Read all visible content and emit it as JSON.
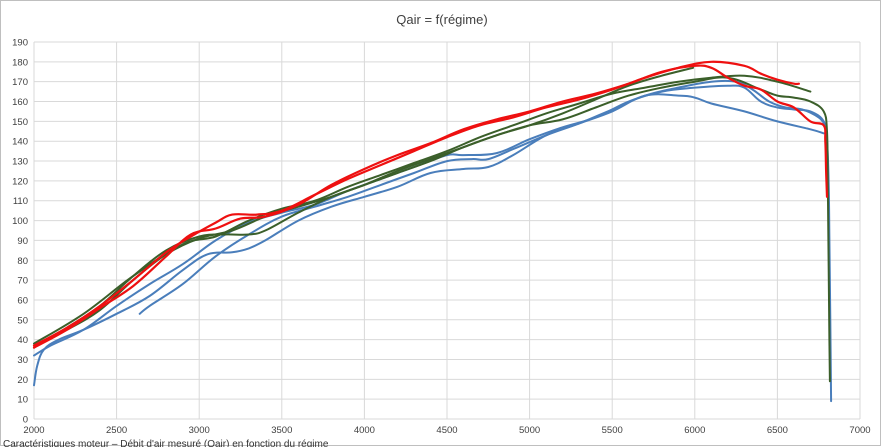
{
  "chart_data": {
    "type": "line",
    "title": "Qair = f(régime)",
    "xlabel": "",
    "ylabel": "",
    "xlim": [
      2000,
      7000
    ],
    "ylim": [
      0,
      190
    ],
    "x_ticks": [
      "2000",
      "2500",
      "3000",
      "3500",
      "4000",
      "4500",
      "5000",
      "5500",
      "6000",
      "6500",
      "7000"
    ],
    "y_ticks": [
      "0",
      "10",
      "20",
      "30",
      "40",
      "50",
      "60",
      "70",
      "80",
      "90",
      "100",
      "110",
      "120",
      "130",
      "140",
      "150",
      "160",
      "170",
      "180",
      "190"
    ],
    "grid": true,
    "legend": "none",
    "colors": {
      "blue": "#4a7ebb",
      "green": "#3b5f2a",
      "red": "#ee1010",
      "grid": "#d9d9d9",
      "text": "#404040"
    },
    "series": [
      {
        "color": "blue",
        "points": [
          [
            2000,
            17
          ],
          [
            2020,
            27
          ],
          [
            2060,
            35
          ],
          [
            2150,
            40
          ],
          [
            2300,
            45
          ],
          [
            2500,
            53
          ],
          [
            2700,
            62
          ],
          [
            2900,
            75
          ],
          [
            3050,
            83
          ],
          [
            3200,
            84
          ],
          [
            3300,
            86
          ],
          [
            3400,
            90
          ],
          [
            3600,
            100
          ],
          [
            3800,
            107
          ],
          [
            4000,
            112
          ],
          [
            4200,
            117
          ],
          [
            4400,
            124
          ],
          [
            4600,
            126
          ],
          [
            4750,
            127
          ],
          [
            4900,
            133
          ],
          [
            5100,
            143
          ],
          [
            5300,
            149
          ],
          [
            5500,
            155
          ],
          [
            5700,
            163
          ],
          [
            5900,
            163
          ],
          [
            6000,
            162
          ],
          [
            6100,
            159
          ],
          [
            6300,
            155
          ],
          [
            6500,
            150
          ],
          [
            6700,
            146
          ],
          [
            6780,
            144
          ]
        ]
      },
      {
        "color": "blue",
        "points": [
          [
            2000,
            32
          ],
          [
            2100,
            37
          ],
          [
            2300,
            45
          ],
          [
            2500,
            57
          ],
          [
            2700,
            68
          ],
          [
            2900,
            78
          ],
          [
            3100,
            90
          ],
          [
            3300,
            99
          ],
          [
            3500,
            104
          ],
          [
            3700,
            108
          ],
          [
            3900,
            115
          ],
          [
            4100,
            121
          ],
          [
            4300,
            127
          ],
          [
            4500,
            133
          ],
          [
            4600,
            133
          ],
          [
            4800,
            134
          ],
          [
            5000,
            141
          ],
          [
            5200,
            147
          ],
          [
            5400,
            152
          ],
          [
            5600,
            160
          ],
          [
            5800,
            165
          ],
          [
            6000,
            167
          ],
          [
            6200,
            168
          ],
          [
            6300,
            167
          ],
          [
            6400,
            160
          ],
          [
            6500,
            157
          ],
          [
            6600,
            156
          ],
          [
            6700,
            155
          ],
          [
            6780,
            150
          ],
          [
            6800,
            140
          ],
          [
            6810,
            120
          ],
          [
            6815,
            90
          ],
          [
            6820,
            50
          ],
          [
            6825,
            9
          ]
        ]
      },
      {
        "color": "blue",
        "points": [
          [
            2640,
            53
          ],
          [
            2700,
            57
          ],
          [
            2900,
            68
          ],
          [
            3100,
            82
          ],
          [
            3300,
            93
          ],
          [
            3500,
            102
          ],
          [
            3700,
            107
          ],
          [
            3900,
            112
          ],
          [
            4100,
            118
          ],
          [
            4300,
            124
          ],
          [
            4500,
            130
          ],
          [
            4650,
            131
          ],
          [
            4750,
            131
          ],
          [
            4900,
            136
          ],
          [
            5100,
            143
          ],
          [
            5300,
            149
          ],
          [
            5500,
            156
          ],
          [
            5700,
            163
          ],
          [
            5900,
            167
          ],
          [
            6100,
            170
          ],
          [
            6250,
            170
          ],
          [
            6350,
            166
          ],
          [
            6450,
            160
          ],
          [
            6550,
            157
          ],
          [
            6650,
            156
          ],
          [
            6750,
            152
          ],
          [
            6790,
            148
          ]
        ]
      },
      {
        "color": "green",
        "points": [
          [
            2000,
            37
          ],
          [
            2200,
            45
          ],
          [
            2400,
            55
          ],
          [
            2600,
            70
          ],
          [
            2800,
            83
          ],
          [
            3000,
            91
          ],
          [
            3200,
            95
          ],
          [
            3400,
            102
          ],
          [
            3600,
            107
          ],
          [
            3800,
            112
          ],
          [
            4000,
            118
          ],
          [
            4200,
            124
          ],
          [
            4400,
            130
          ],
          [
            4600,
            137
          ],
          [
            4800,
            143
          ],
          [
            5000,
            148
          ],
          [
            5200,
            154
          ],
          [
            5400,
            161
          ],
          [
            5600,
            168
          ],
          [
            5800,
            173
          ],
          [
            5990,
            177
          ]
        ]
      },
      {
        "color": "green",
        "points": [
          [
            2000,
            36
          ],
          [
            2200,
            46
          ],
          [
            2400,
            57
          ],
          [
            2600,
            72
          ],
          [
            2800,
            85
          ],
          [
            3000,
            92
          ],
          [
            3150,
            93
          ],
          [
            3300,
            93
          ],
          [
            3400,
            95
          ],
          [
            3600,
            104
          ],
          [
            3800,
            112
          ],
          [
            4000,
            118
          ],
          [
            4200,
            125
          ],
          [
            4400,
            131
          ],
          [
            4600,
            137
          ],
          [
            4800,
            143
          ],
          [
            5000,
            148
          ],
          [
            5200,
            151
          ],
          [
            5400,
            157
          ],
          [
            5600,
            163
          ],
          [
            5800,
            167
          ],
          [
            6000,
            170
          ],
          [
            6200,
            172
          ],
          [
            6400,
            166
          ],
          [
            6500,
            163
          ],
          [
            6600,
            162
          ],
          [
            6700,
            160
          ],
          [
            6780,
            155
          ],
          [
            6800,
            145
          ],
          [
            6805,
            120
          ],
          [
            6810,
            80
          ],
          [
            6815,
            40
          ],
          [
            6818,
            19
          ]
        ]
      },
      {
        "color": "green",
        "points": [
          [
            2000,
            38
          ],
          [
            2300,
            53
          ],
          [
            2600,
            72
          ],
          [
            2900,
            88
          ],
          [
            3100,
            92
          ],
          [
            3300,
            100
          ],
          [
            3500,
            106
          ],
          [
            3700,
            110
          ],
          [
            3900,
            117
          ],
          [
            4100,
            123
          ],
          [
            4300,
            129
          ],
          [
            4500,
            135
          ],
          [
            4700,
            142
          ],
          [
            4900,
            148
          ],
          [
            5100,
            154
          ],
          [
            5300,
            159
          ],
          [
            5500,
            164
          ],
          [
            5700,
            167
          ],
          [
            5900,
            170
          ],
          [
            6100,
            172
          ],
          [
            6300,
            173
          ],
          [
            6500,
            170
          ],
          [
            6700,
            165
          ]
        ]
      },
      {
        "color": "red",
        "points": [
          [
            2000,
            36
          ],
          [
            2200,
            45
          ],
          [
            2400,
            56
          ],
          [
            2600,
            67
          ],
          [
            2800,
            82
          ],
          [
            2950,
            93
          ],
          [
            3100,
            96
          ],
          [
            3250,
            101
          ],
          [
            3400,
            102
          ],
          [
            3600,
            108
          ],
          [
            3800,
            118
          ],
          [
            4000,
            126
          ],
          [
            4200,
            133
          ],
          [
            4400,
            139
          ],
          [
            4600,
            146
          ],
          [
            4800,
            151
          ],
          [
            5000,
            155
          ],
          [
            5200,
            160
          ],
          [
            5400,
            164
          ],
          [
            5600,
            169
          ],
          [
            5800,
            175
          ],
          [
            6000,
            178
          ],
          [
            6100,
            177
          ],
          [
            6200,
            172
          ],
          [
            6300,
            168
          ],
          [
            6400,
            166
          ],
          [
            6500,
            160
          ],
          [
            6600,
            157
          ],
          [
            6700,
            150
          ],
          [
            6780,
            148
          ],
          [
            6790,
            140
          ],
          [
            6795,
            125
          ],
          [
            6800,
            112
          ]
        ]
      },
      {
        "color": "red",
        "points": [
          [
            2000,
            37
          ],
          [
            2200,
            46
          ],
          [
            2400,
            57
          ],
          [
            2600,
            70
          ],
          [
            2800,
            84
          ],
          [
            2950,
            92
          ],
          [
            3100,
            99
          ],
          [
            3200,
            103
          ],
          [
            3350,
            103
          ],
          [
            3500,
            105
          ],
          [
            3700,
            113
          ],
          [
            3900,
            121
          ],
          [
            4100,
            128
          ],
          [
            4300,
            135
          ],
          [
            4500,
            142
          ],
          [
            4700,
            148
          ],
          [
            4900,
            152
          ],
          [
            5100,
            157
          ],
          [
            5300,
            161
          ],
          [
            5500,
            166
          ],
          [
            5700,
            172
          ],
          [
            5900,
            177
          ],
          [
            6100,
            180
          ],
          [
            6300,
            178
          ],
          [
            6400,
            174
          ],
          [
            6500,
            171
          ],
          [
            6600,
            169
          ],
          [
            6630,
            169
          ]
        ]
      }
    ]
  },
  "footer": {
    "cutoff_text": "Caractéristiques moteur – Débit d'air mesuré (Qair) en fonction du régime"
  }
}
